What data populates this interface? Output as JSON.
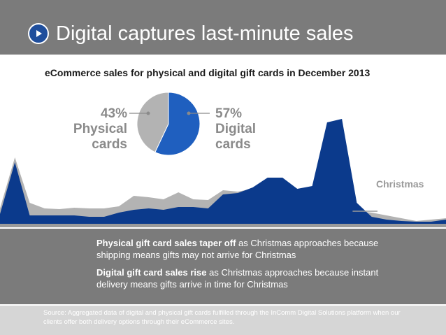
{
  "header": {
    "title": "Digital captures last-minute sales",
    "icon": "play-icon",
    "background": "#7b7b7b",
    "accent": "#1f4e9c"
  },
  "subtitle": "eCommerce sales for physical and digital gift cards in December 2013",
  "pie": {
    "physical_pct": "43%",
    "physical_label_line1": "Physical",
    "physical_label_line2": "cards",
    "digital_pct": "57%",
    "digital_label_line1": "Digital",
    "digital_label_line2": "cards"
  },
  "annotation": {
    "christmas": "Christmas"
  },
  "notes": {
    "physical_bold": "Physical gift card sales taper off",
    "physical_rest": " as Christmas approaches because shipping means gifts may not arrive for Christmas",
    "digital_bold": "Digital gift card sales rise",
    "digital_rest": " as Christmas approaches because instant delivery means gifts arrive in time for Christmas"
  },
  "source": {
    "text": "Source: Aggregated data of digital and physical gift cards fulfilled through the InComm Digital Solutions platform when our clients offer both delivery options through their eCommerce  sites."
  },
  "chart_data": [
    {
      "type": "area",
      "series": [
        {
          "name": "Physical cards",
          "color": "#b3b3b3",
          "values": [
            22,
            95,
            30,
            22,
            21,
            23,
            22,
            22,
            25,
            40,
            38,
            35,
            45,
            35,
            34,
            48,
            46,
            50,
            45,
            38,
            35,
            26,
            25,
            22,
            18,
            16,
            12,
            8,
            4,
            6,
            8
          ]
        },
        {
          "name": "Digital cards",
          "color": "#0b3a8c",
          "values": [
            14,
            88,
            12,
            12,
            12,
            12,
            10,
            10,
            16,
            20,
            22,
            20,
            24,
            24,
            22,
            42,
            44,
            52,
            66,
            66,
            50,
            54,
            145,
            150,
            30,
            10,
            6,
            4,
            3,
            3,
            6
          ]
        }
      ],
      "days": 31,
      "annotation": {
        "label": "Christmas",
        "day": 25
      }
    },
    {
      "type": "pie",
      "slices": [
        {
          "label": "Physical cards",
          "value": 43,
          "color": "#b3b3b3"
        },
        {
          "label": "Digital cards",
          "value": 57,
          "color": "#1f5fbf"
        }
      ]
    }
  ]
}
